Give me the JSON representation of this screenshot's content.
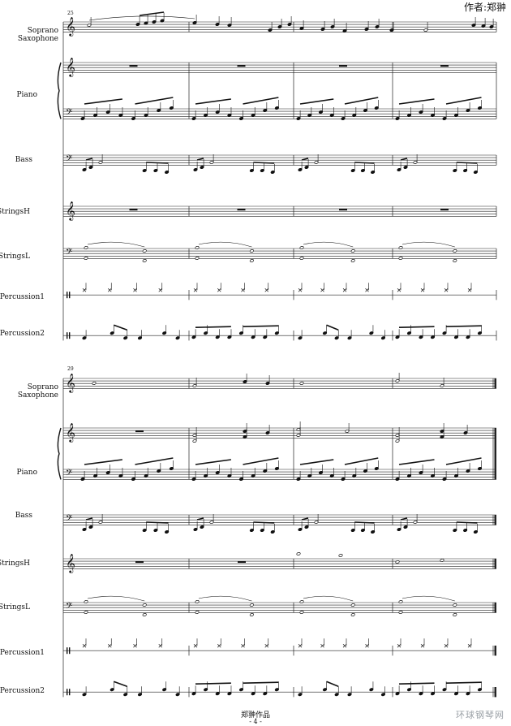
{
  "header": {
    "author": "作者:郑翀"
  },
  "footer": {
    "title": "郑翀作品",
    "page_number": "- 4 -"
  },
  "watermark": {
    "text": "环球钢琴网"
  },
  "systems": [
    {
      "measure_number": "25",
      "instruments": [
        "Soprano Saxophone",
        "Piano",
        "Bass",
        "StringsH",
        "StringsL",
        "Percussion1",
        "Percussion2"
      ]
    },
    {
      "measure_number": "29",
      "instruments": [
        "Soprano Saxophone",
        "Piano",
        "Bass",
        "StringsH",
        "StringsL",
        "Percussion1",
        "Percussion2"
      ]
    }
  ]
}
